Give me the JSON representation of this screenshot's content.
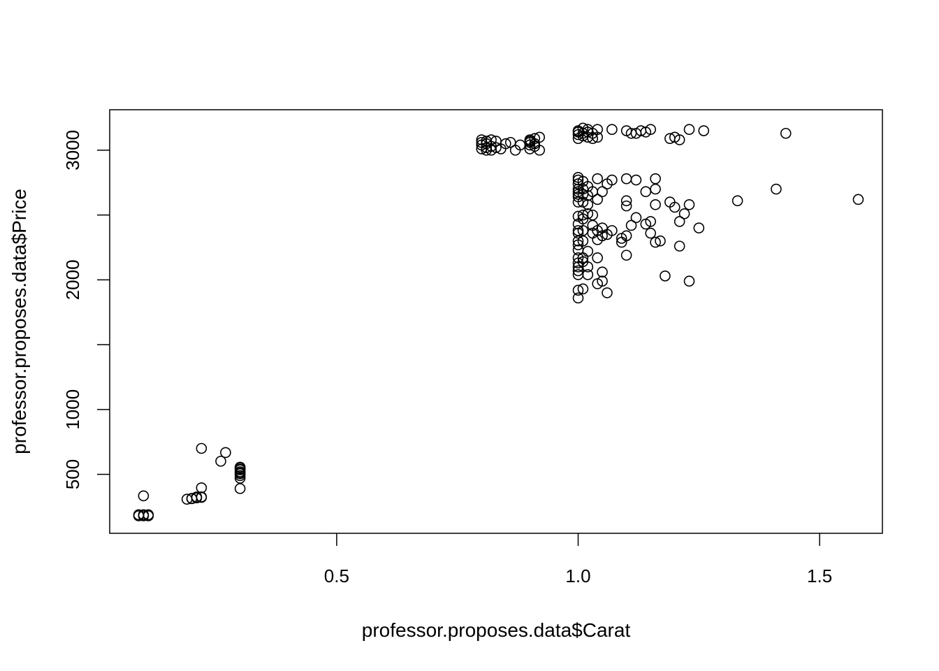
{
  "chart_data": {
    "type": "scatter",
    "title": "",
    "xlabel": "professor.proposes.data$Carat",
    "ylabel": "professor.proposes.data$Price",
    "xlim": [
      0.03,
      1.63
    ],
    "ylim": [
      45,
      3312
    ],
    "x_ticks": [
      0.5,
      1.0,
      1.5
    ],
    "x_tick_labels": [
      "0.5",
      "1.0",
      "1.5"
    ],
    "y_ticks": [
      500,
      1000,
      1500,
      2000,
      2500,
      3000
    ],
    "y_tick_labels": [
      "500",
      "1000",
      "",
      "2000",
      "",
      "3000"
    ],
    "grid": false,
    "legend": "none",
    "point_style": "open circle",
    "points": [
      [
        0.09,
        188
      ],
      [
        0.1,
        188
      ],
      [
        0.11,
        188
      ],
      [
        0.09,
        180
      ],
      [
        0.1,
        180
      ],
      [
        0.11,
        180
      ],
      [
        0.1,
        334
      ],
      [
        0.19,
        308
      ],
      [
        0.2,
        314
      ],
      [
        0.21,
        318
      ],
      [
        0.22,
        326
      ],
      [
        0.22,
        396
      ],
      [
        0.22,
        322
      ],
      [
        0.21,
        325
      ],
      [
        0.2,
        312
      ],
      [
        0.22,
        700
      ],
      [
        0.26,
        601
      ],
      [
        0.27,
        668
      ],
      [
        0.3,
        551
      ],
      [
        0.3,
        535
      ],
      [
        0.3,
        520
      ],
      [
        0.3,
        505
      ],
      [
        0.3,
        490
      ],
      [
        0.3,
        470
      ],
      [
        0.3,
        390
      ],
      [
        0.3,
        540
      ],
      [
        0.3,
        555
      ],
      [
        0.3,
        510
      ],
      [
        0.8,
        3040
      ],
      [
        0.8,
        3080
      ],
      [
        0.81,
        3000
      ],
      [
        0.81,
        3070
      ],
      [
        0.82,
        3030
      ],
      [
        0.82,
        3080
      ],
      [
        0.83,
        3020
      ],
      [
        0.84,
        3010
      ],
      [
        0.85,
        3050
      ],
      [
        0.86,
        3060
      ],
      [
        0.87,
        3000
      ],
      [
        0.88,
        3040
      ],
      [
        0.8,
        3010
      ],
      [
        0.81,
        3050
      ],
      [
        0.82,
        3000
      ],
      [
        0.8,
        3060
      ],
      [
        0.83,
        3070
      ],
      [
        0.81,
        3020
      ],
      [
        0.9,
        3010
      ],
      [
        0.9,
        3040
      ],
      [
        0.9,
        3070
      ],
      [
        0.91,
        3050
      ],
      [
        0.91,
        3090
      ],
      [
        0.92,
        3100
      ],
      [
        0.92,
        3000
      ],
      [
        0.9,
        3080
      ],
      [
        0.91,
        3030
      ],
      [
        0.9,
        3060
      ],
      [
        1.0,
        3090
      ],
      [
        1.0,
        3120
      ],
      [
        1.0,
        3150
      ],
      [
        1.01,
        3130
      ],
      [
        1.01,
        3170
      ],
      [
        1.02,
        3100
      ],
      [
        1.02,
        3160
      ],
      [
        1.03,
        3090
      ],
      [
        1.03,
        3130
      ],
      [
        1.04,
        3160
      ],
      [
        1.0,
        3140
      ],
      [
        1.01,
        3110
      ],
      [
        1.02,
        3140
      ],
      [
        1.04,
        3100
      ],
      [
        1.07,
        3160
      ],
      [
        1.1,
        3150
      ],
      [
        1.11,
        3130
      ],
      [
        1.12,
        3130
      ],
      [
        1.13,
        3150
      ],
      [
        1.14,
        3140
      ],
      [
        1.15,
        3160
      ],
      [
        1.19,
        3090
      ],
      [
        1.2,
        3100
      ],
      [
        1.21,
        3080
      ],
      [
        1.23,
        3160
      ],
      [
        1.26,
        3150
      ],
      [
        1.43,
        3130
      ],
      [
        1.0,
        2790
      ],
      [
        1.0,
        2770
      ],
      [
        1.0,
        2740
      ],
      [
        1.0,
        2700
      ],
      [
        1.0,
        2680
      ],
      [
        1.0,
        2660
      ],
      [
        1.0,
        2640
      ],
      [
        1.0,
        2600
      ],
      [
        1.0,
        2490
      ],
      [
        1.0,
        2430
      ],
      [
        1.0,
        2380
      ],
      [
        1.0,
        2360
      ],
      [
        1.0,
        2300
      ],
      [
        1.0,
        2270
      ],
      [
        1.0,
        2230
      ],
      [
        1.0,
        2170
      ],
      [
        1.0,
        2130
      ],
      [
        1.0,
        2100
      ],
      [
        1.0,
        2070
      ],
      [
        1.0,
        2040
      ],
      [
        1.0,
        1920
      ],
      [
        1.0,
        1860
      ],
      [
        1.01,
        2760
      ],
      [
        1.01,
        2700
      ],
      [
        1.01,
        2660
      ],
      [
        1.01,
        2600
      ],
      [
        1.01,
        2500
      ],
      [
        1.01,
        2470
      ],
      [
        1.01,
        2380
      ],
      [
        1.01,
        2300
      ],
      [
        1.01,
        2170
      ],
      [
        1.01,
        2140
      ],
      [
        1.01,
        1930
      ],
      [
        1.02,
        2720
      ],
      [
        1.02,
        2650
      ],
      [
        1.02,
        2580
      ],
      [
        1.02,
        2510
      ],
      [
        1.02,
        2220
      ],
      [
        1.02,
        2100
      ],
      [
        1.02,
        2040
      ],
      [
        1.03,
        2680
      ],
      [
        1.03,
        2500
      ],
      [
        1.03,
        2420
      ],
      [
        1.03,
        2360
      ],
      [
        1.04,
        2780
      ],
      [
        1.04,
        2620
      ],
      [
        1.04,
        2380
      ],
      [
        1.04,
        2310
      ],
      [
        1.04,
        2170
      ],
      [
        1.04,
        1970
      ],
      [
        1.05,
        2680
      ],
      [
        1.05,
        2400
      ],
      [
        1.05,
        2340
      ],
      [
        1.05,
        2060
      ],
      [
        1.05,
        1990
      ],
      [
        1.06,
        2740
      ],
      [
        1.06,
        2350
      ],
      [
        1.06,
        1900
      ],
      [
        1.07,
        2770
      ],
      [
        1.07,
        2380
      ],
      [
        1.09,
        2320
      ],
      [
        1.09,
        2290
      ],
      [
        1.1,
        2780
      ],
      [
        1.1,
        2610
      ],
      [
        1.1,
        2570
      ],
      [
        1.1,
        2340
      ],
      [
        1.1,
        2190
      ],
      [
        1.11,
        2420
      ],
      [
        1.12,
        2770
      ],
      [
        1.12,
        2480
      ],
      [
        1.14,
        2680
      ],
      [
        1.14,
        2430
      ],
      [
        1.15,
        2450
      ],
      [
        1.15,
        2360
      ],
      [
        1.16,
        2780
      ],
      [
        1.16,
        2700
      ],
      [
        1.16,
        2580
      ],
      [
        1.16,
        2290
      ],
      [
        1.17,
        2300
      ],
      [
        1.18,
        2030
      ],
      [
        1.19,
        2600
      ],
      [
        1.2,
        2560
      ],
      [
        1.21,
        2450
      ],
      [
        1.21,
        2260
      ],
      [
        1.22,
        2510
      ],
      [
        1.23,
        2580
      ],
      [
        1.23,
        1990
      ],
      [
        1.25,
        2400
      ],
      [
        1.33,
        2610
      ],
      [
        1.41,
        2700
      ],
      [
        1.58,
        2620
      ]
    ]
  }
}
